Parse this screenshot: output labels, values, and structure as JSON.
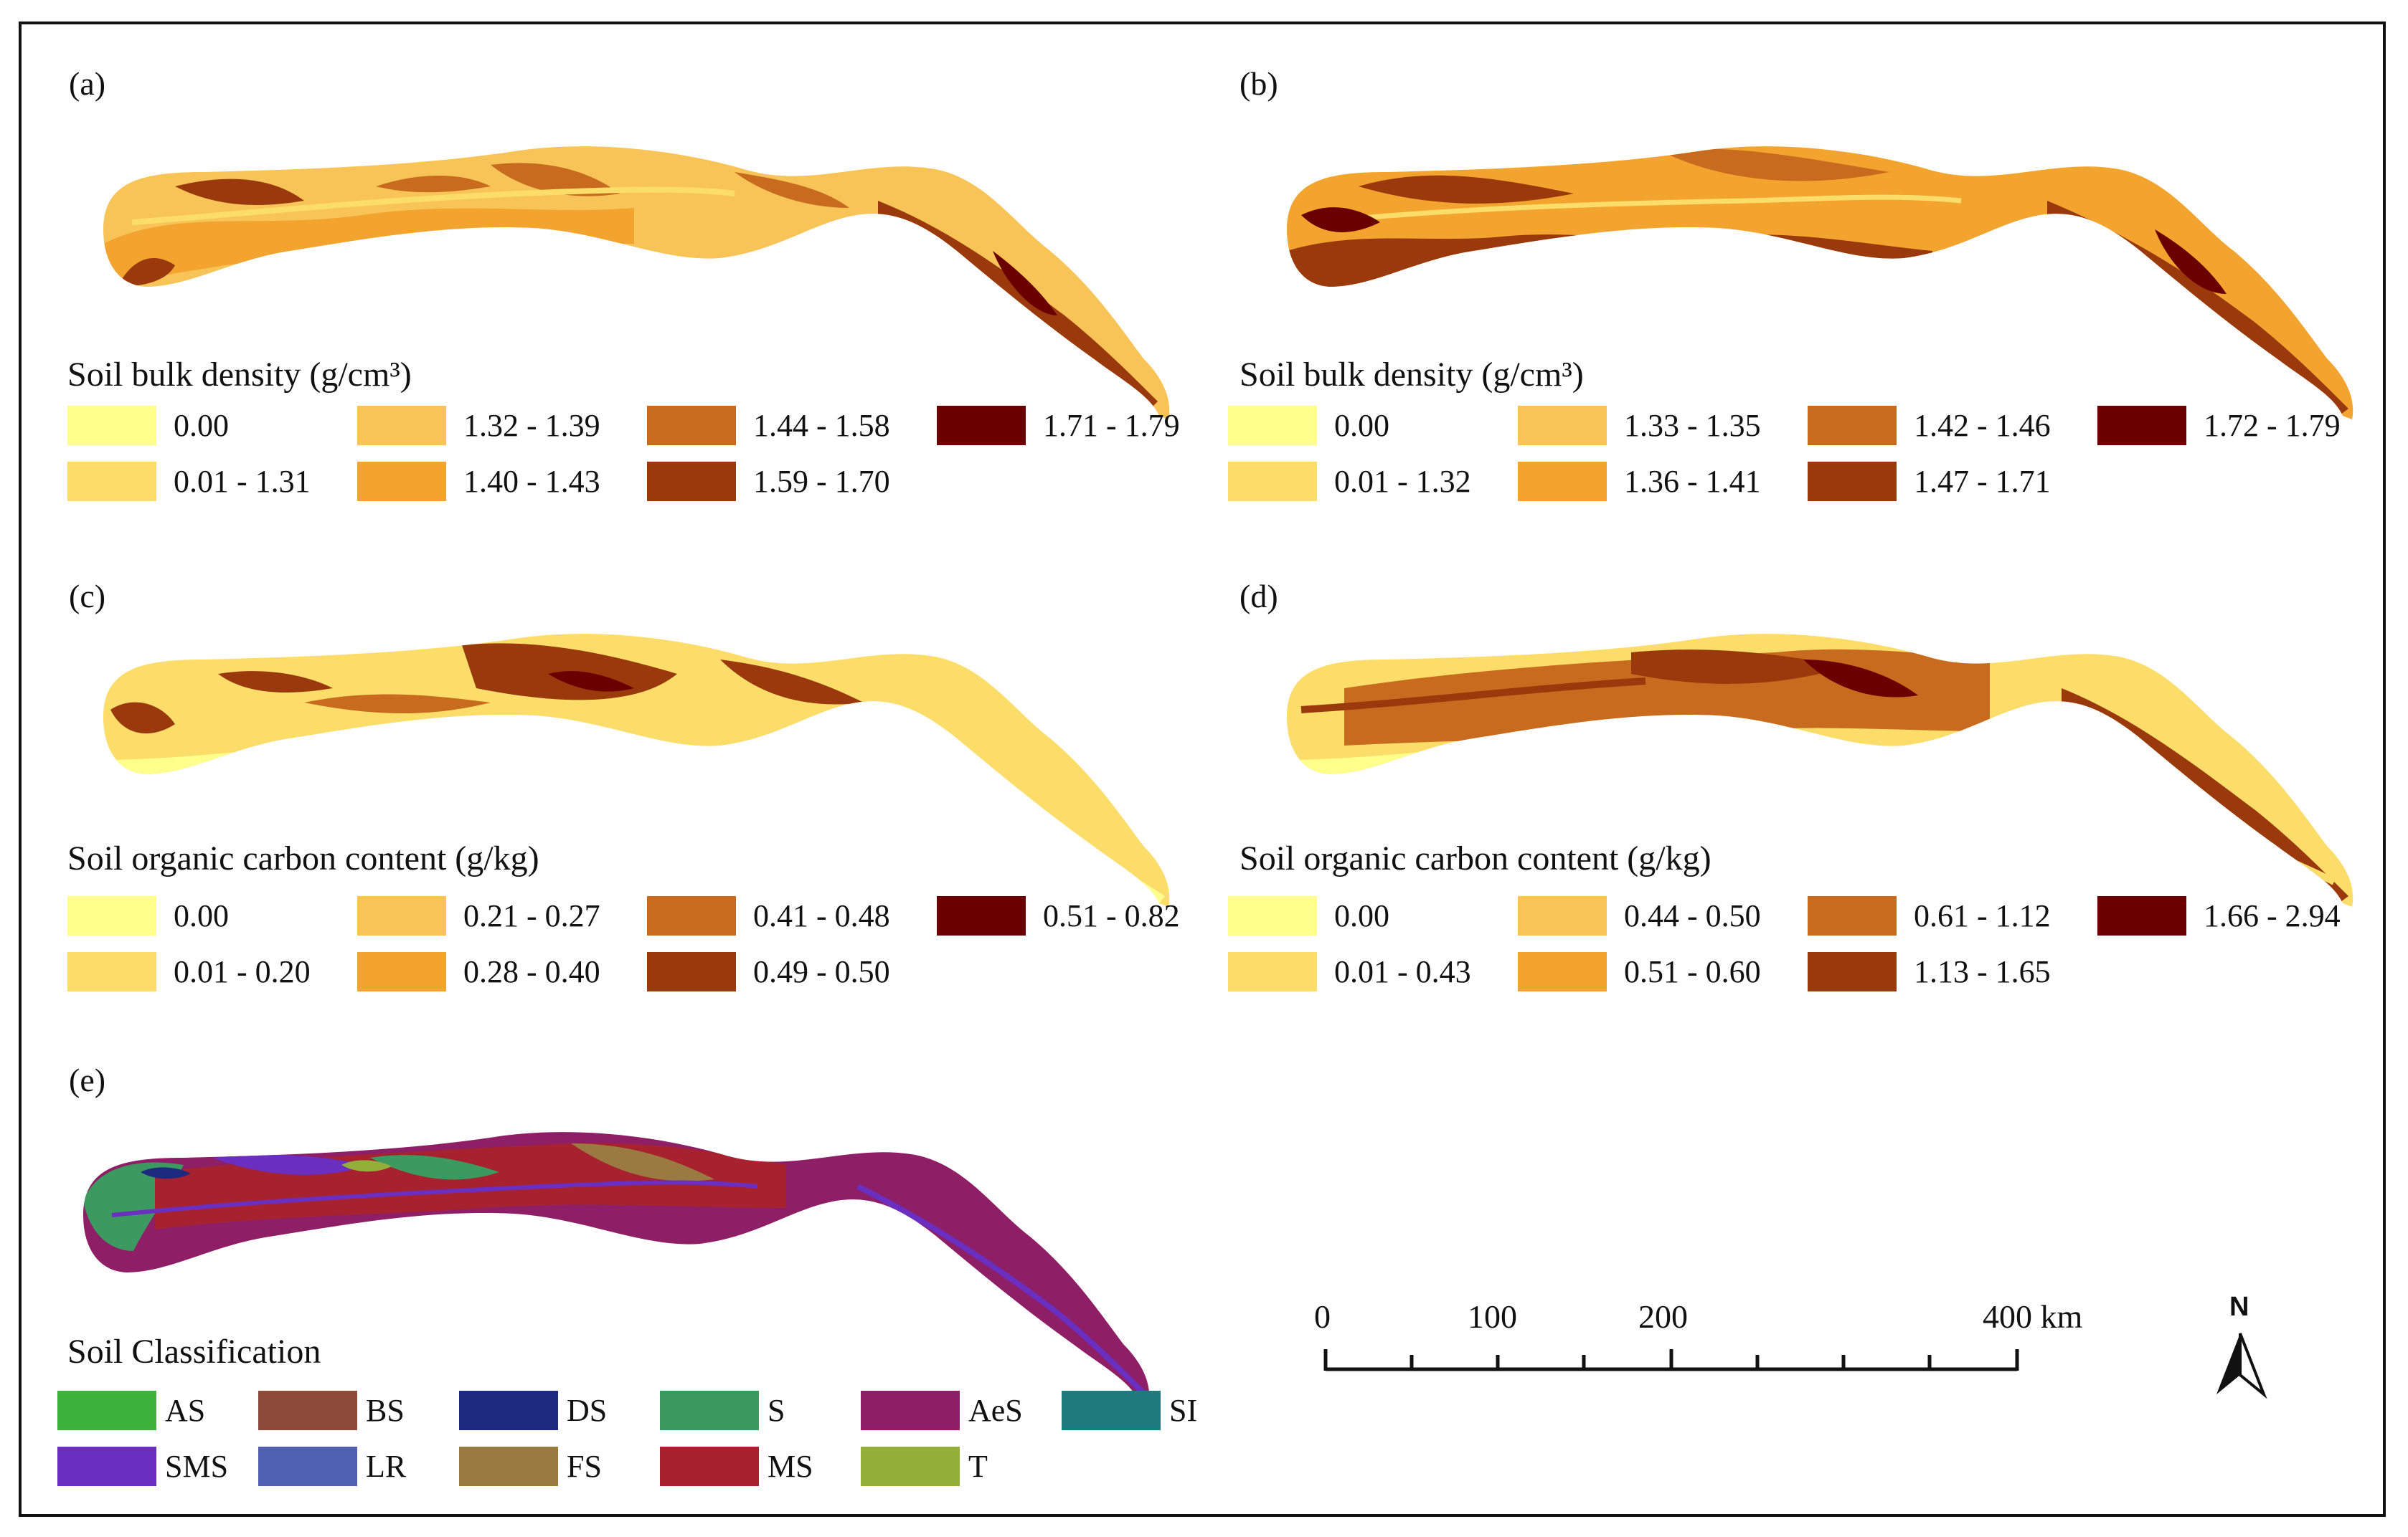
{
  "colors": {
    "c1": "#FFFF8C",
    "c2": "#FDDD6A",
    "c3": "#F9C457",
    "c4": "#F2A42F",
    "c5": "#C86B1E",
    "c6": "#9A3A0C",
    "c7": "#6B0000",
    "AS": "#3DB33D",
    "BS": "#8C4A3A",
    "DS": "#1C2A80",
    "S": "#3C9A60",
    "AeS": "#8E1E66",
    "SI": "#1F7A7E",
    "SMS": "#6A2EC0",
    "LR": "#5060B0",
    "FS": "#9A7A40",
    "MS": "#A8212E",
    "T": "#94AE3A"
  },
  "panels": [
    {
      "label": "(a)",
      "legend_title": "Soil bulk density (g/cm³)",
      "classes": [
        "0.00",
        "0.01 - 1.31",
        "1.32 - 1.39",
        "1.40 - 1.43",
        "1.44 - 1.58",
        "1.59 - 1.70",
        "1.71 - 1.79"
      ]
    },
    {
      "label": "(b)",
      "legend_title": "Soil bulk density (g/cm³)",
      "classes": [
        "0.00",
        "0.01 - 1.32",
        "1.33 - 1.35",
        "1.36 - 1.41",
        "1.42 - 1.46",
        "1.47 - 1.71",
        "1.72 - 1.79"
      ]
    },
    {
      "label": "(c)",
      "legend_title": "Soil organic carbon content (g/kg)",
      "classes": [
        "0.00",
        "0.01 - 0.20",
        "0.21 - 0.27",
        "0.28 - 0.40",
        "0.41 - 0.48",
        "0.49 - 0.50",
        "0.51 - 0.82"
      ]
    },
    {
      "label": "(d)",
      "legend_title": "Soil organic carbon content (g/kg)",
      "classes": [
        "0.00",
        "0.01 - 0.43",
        "0.44 - 0.50",
        "0.51 - 0.60",
        "0.61 - 1.12",
        "1.13 - 1.65",
        "1.66 - 2.94"
      ]
    }
  ],
  "panel_e": {
    "label": "(e)",
    "legend_title": "Soil Classification",
    "classes": [
      "AS",
      "BS",
      "DS",
      "S",
      "AeS",
      "SI",
      "SMS",
      "LR",
      "FS",
      "MS",
      "T"
    ]
  },
  "scale_bar": {
    "ticks": [
      "0",
      "100",
      "200",
      "400 km"
    ]
  },
  "north_arrow": {
    "label": "N"
  }
}
